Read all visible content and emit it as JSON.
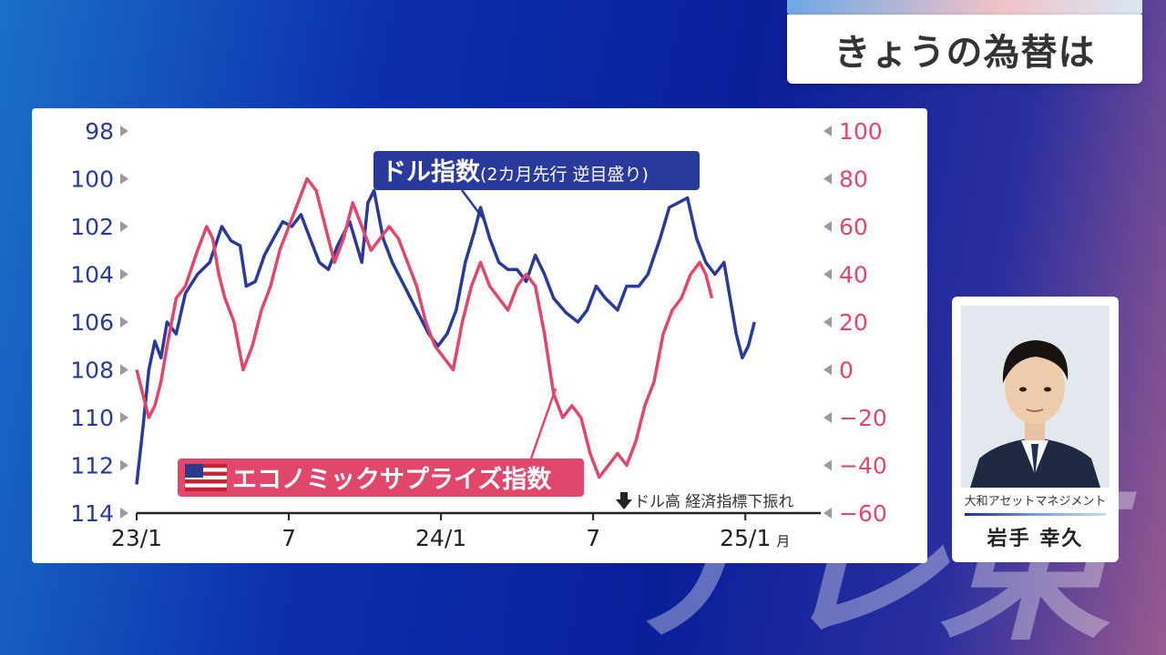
{
  "header": {
    "title": "きょうの為替は"
  },
  "watermark": {
    "text": "テレ東"
  },
  "presenter": {
    "company": "大和アセットマネジメント",
    "name": "岩手 幸久"
  },
  "chart_data": {
    "type": "line",
    "left_axis": {
      "ticks": [
        "98",
        "100",
        "102",
        "104",
        "106",
        "108",
        "110",
        "112",
        "114"
      ],
      "range": [
        98,
        114
      ],
      "inverted": true,
      "color": "#2a3a9c"
    },
    "right_axis": {
      "ticks": [
        "100",
        "80",
        "60",
        "40",
        "20",
        "0",
        "−20",
        "−40",
        "−60"
      ],
      "range": [
        -60,
        100
      ],
      "color": "#e0476a"
    },
    "x_axis": {
      "range": [
        2023.0,
        2025.17
      ],
      "ticks": [
        {
          "x": 2023.0,
          "label": "23/1"
        },
        {
          "x": 2023.5,
          "label": "7"
        },
        {
          "x": 2024.0,
          "label": "24/1"
        },
        {
          "x": 2024.5,
          "label": "7"
        },
        {
          "x": 2025.0,
          "label": "25/1"
        }
      ],
      "unit_label": "月"
    },
    "series": [
      {
        "name": "ドル指数(2カ月先行 逆目盛り)",
        "label_main": "ドル指数",
        "label_sub": "(2カ月先行 逆目盛り)",
        "axis": "left",
        "color": "#2a3a9c",
        "points": [
          [
            2023.0,
            112.8
          ],
          [
            2023.02,
            110.5
          ],
          [
            2023.04,
            108.0
          ],
          [
            2023.06,
            106.8
          ],
          [
            2023.08,
            107.5
          ],
          [
            2023.1,
            106.0
          ],
          [
            2023.13,
            106.5
          ],
          [
            2023.16,
            104.8
          ],
          [
            2023.2,
            104.0
          ],
          [
            2023.24,
            103.5
          ],
          [
            2023.28,
            102.0
          ],
          [
            2023.31,
            102.6
          ],
          [
            2023.34,
            102.8
          ],
          [
            2023.36,
            104.5
          ],
          [
            2023.39,
            104.3
          ],
          [
            2023.42,
            103.2
          ],
          [
            2023.45,
            102.5
          ],
          [
            2023.48,
            101.8
          ],
          [
            2023.51,
            102.0
          ],
          [
            2023.54,
            101.5
          ],
          [
            2023.57,
            102.5
          ],
          [
            2023.6,
            103.5
          ],
          [
            2023.63,
            103.8
          ],
          [
            2023.66,
            102.8
          ],
          [
            2023.7,
            101.8
          ],
          [
            2023.74,
            103.5
          ],
          [
            2023.76,
            101.0
          ],
          [
            2023.78,
            100.5
          ],
          [
            2023.81,
            102.5
          ],
          [
            2023.84,
            103.5
          ],
          [
            2023.88,
            104.5
          ],
          [
            2023.92,
            105.5
          ],
          [
            2023.96,
            106.5
          ],
          [
            2023.99,
            107.0
          ],
          [
            2024.02,
            106.5
          ],
          [
            2024.05,
            105.5
          ],
          [
            2024.08,
            103.5
          ],
          [
            2024.11,
            102.2
          ],
          [
            2024.13,
            101.2
          ],
          [
            2024.16,
            102.5
          ],
          [
            2024.19,
            103.5
          ],
          [
            2024.22,
            103.8
          ],
          [
            2024.25,
            103.8
          ],
          [
            2024.28,
            104.3
          ],
          [
            2024.31,
            103.2
          ],
          [
            2024.34,
            104.0
          ],
          [
            2024.37,
            105.0
          ],
          [
            2024.41,
            105.6
          ],
          [
            2024.45,
            106.0
          ],
          [
            2024.48,
            105.5
          ],
          [
            2024.51,
            104.5
          ],
          [
            2024.54,
            105.0
          ],
          [
            2024.58,
            105.5
          ],
          [
            2024.61,
            104.5
          ],
          [
            2024.65,
            104.5
          ],
          [
            2024.68,
            104.0
          ],
          [
            2024.72,
            102.5
          ],
          [
            2024.75,
            101.2
          ],
          [
            2024.78,
            101.0
          ],
          [
            2024.81,
            100.8
          ],
          [
            2024.84,
            102.5
          ],
          [
            2024.87,
            103.5
          ],
          [
            2024.9,
            104.0
          ],
          [
            2024.93,
            103.5
          ],
          [
            2024.95,
            105.0
          ],
          [
            2024.97,
            106.5
          ],
          [
            2024.99,
            107.5
          ],
          [
            2025.01,
            107.0
          ],
          [
            2025.03,
            106.0
          ]
        ]
      },
      {
        "name": "エコノミックサプライズ指数",
        "axis": "right",
        "color": "#e0476a",
        "points": [
          [
            2023.0,
            0
          ],
          [
            2023.02,
            -10
          ],
          [
            2023.04,
            -20
          ],
          [
            2023.06,
            -15
          ],
          [
            2023.08,
            -5
          ],
          [
            2023.1,
            10
          ],
          [
            2023.13,
            30
          ],
          [
            2023.16,
            35
          ],
          [
            2023.2,
            50
          ],
          [
            2023.23,
            60
          ],
          [
            2023.25,
            55
          ],
          [
            2023.27,
            40
          ],
          [
            2023.29,
            30
          ],
          [
            2023.32,
            20
          ],
          [
            2023.35,
            0
          ],
          [
            2023.38,
            10
          ],
          [
            2023.41,
            25
          ],
          [
            2023.44,
            35
          ],
          [
            2023.47,
            50
          ],
          [
            2023.5,
            60
          ],
          [
            2023.53,
            70
          ],
          [
            2023.56,
            80
          ],
          [
            2023.59,
            75
          ],
          [
            2023.62,
            60
          ],
          [
            2023.65,
            45
          ],
          [
            2023.68,
            55
          ],
          [
            2023.71,
            70
          ],
          [
            2023.74,
            60
          ],
          [
            2023.77,
            50
          ],
          [
            2023.8,
            55
          ],
          [
            2023.83,
            60
          ],
          [
            2023.86,
            55
          ],
          [
            2023.89,
            45
          ],
          [
            2023.92,
            35
          ],
          [
            2023.95,
            20
          ],
          [
            2023.98,
            10
          ],
          [
            2024.01,
            5
          ],
          [
            2024.04,
            0
          ],
          [
            2024.07,
            20
          ],
          [
            2024.1,
            35
          ],
          [
            2024.13,
            45
          ],
          [
            2024.16,
            35
          ],
          [
            2024.19,
            30
          ],
          [
            2024.22,
            25
          ],
          [
            2024.25,
            35
          ],
          [
            2024.28,
            40
          ],
          [
            2024.31,
            35
          ],
          [
            2024.34,
            15
          ],
          [
            2024.37,
            -10
          ],
          [
            2024.4,
            -20
          ],
          [
            2024.43,
            -15
          ],
          [
            2024.46,
            -20
          ],
          [
            2024.49,
            -35
          ],
          [
            2024.52,
            -45
          ],
          [
            2024.55,
            -40
          ],
          [
            2024.58,
            -35
          ],
          [
            2024.61,
            -40
          ],
          [
            2024.64,
            -30
          ],
          [
            2024.67,
            -15
          ],
          [
            2024.7,
            -5
          ],
          [
            2024.73,
            15
          ],
          [
            2024.76,
            25
          ],
          [
            2024.79,
            30
          ],
          [
            2024.82,
            40
          ],
          [
            2024.85,
            45
          ],
          [
            2024.87,
            40
          ],
          [
            2024.89,
            30
          ]
        ]
      }
    ],
    "annotation": "ドル高 経済指標下振れ"
  }
}
